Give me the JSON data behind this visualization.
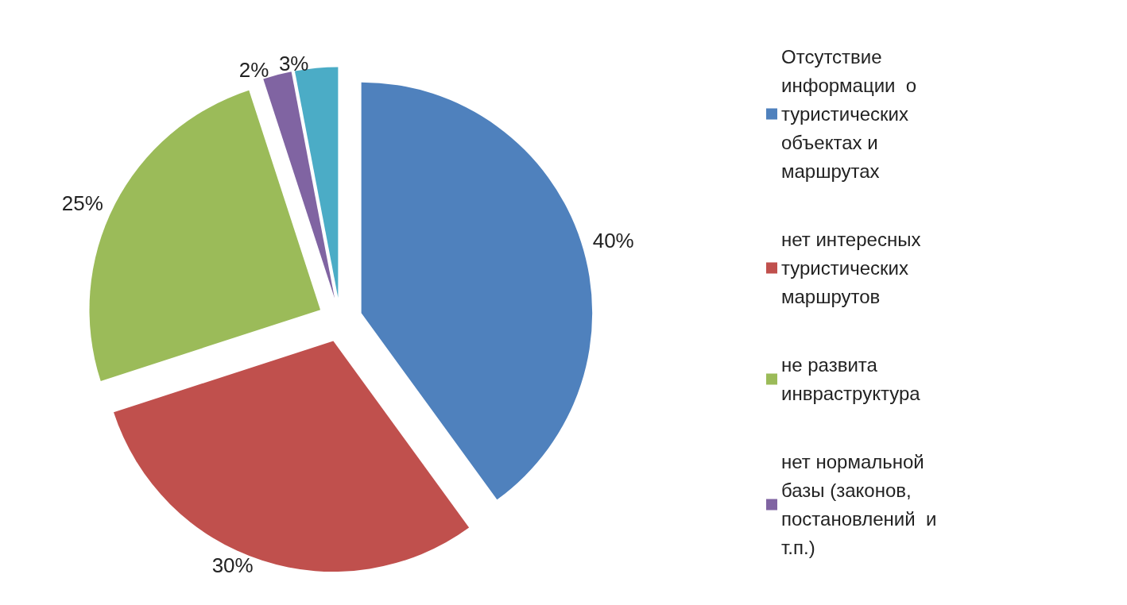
{
  "chart_data": {
    "type": "pie",
    "categories": [
      "Отсутствие информации  о туристических объектах и маршрутах",
      "нет интересных туристических маршрутов",
      "не развита  инвраструктура",
      "нет нормальной  базы (законов, постановлений  и т.п.)",
      null
    ],
    "values": [
      40,
      30,
      25,
      2,
      3
    ],
    "value_labels": [
      "40%",
      "30%",
      "25%",
      "2%",
      "3%"
    ],
    "colors": [
      "#4f81bd",
      "#c0504d",
      "#9bbb59",
      "#8064a2",
      "#4bacc6"
    ],
    "legend": "right"
  }
}
